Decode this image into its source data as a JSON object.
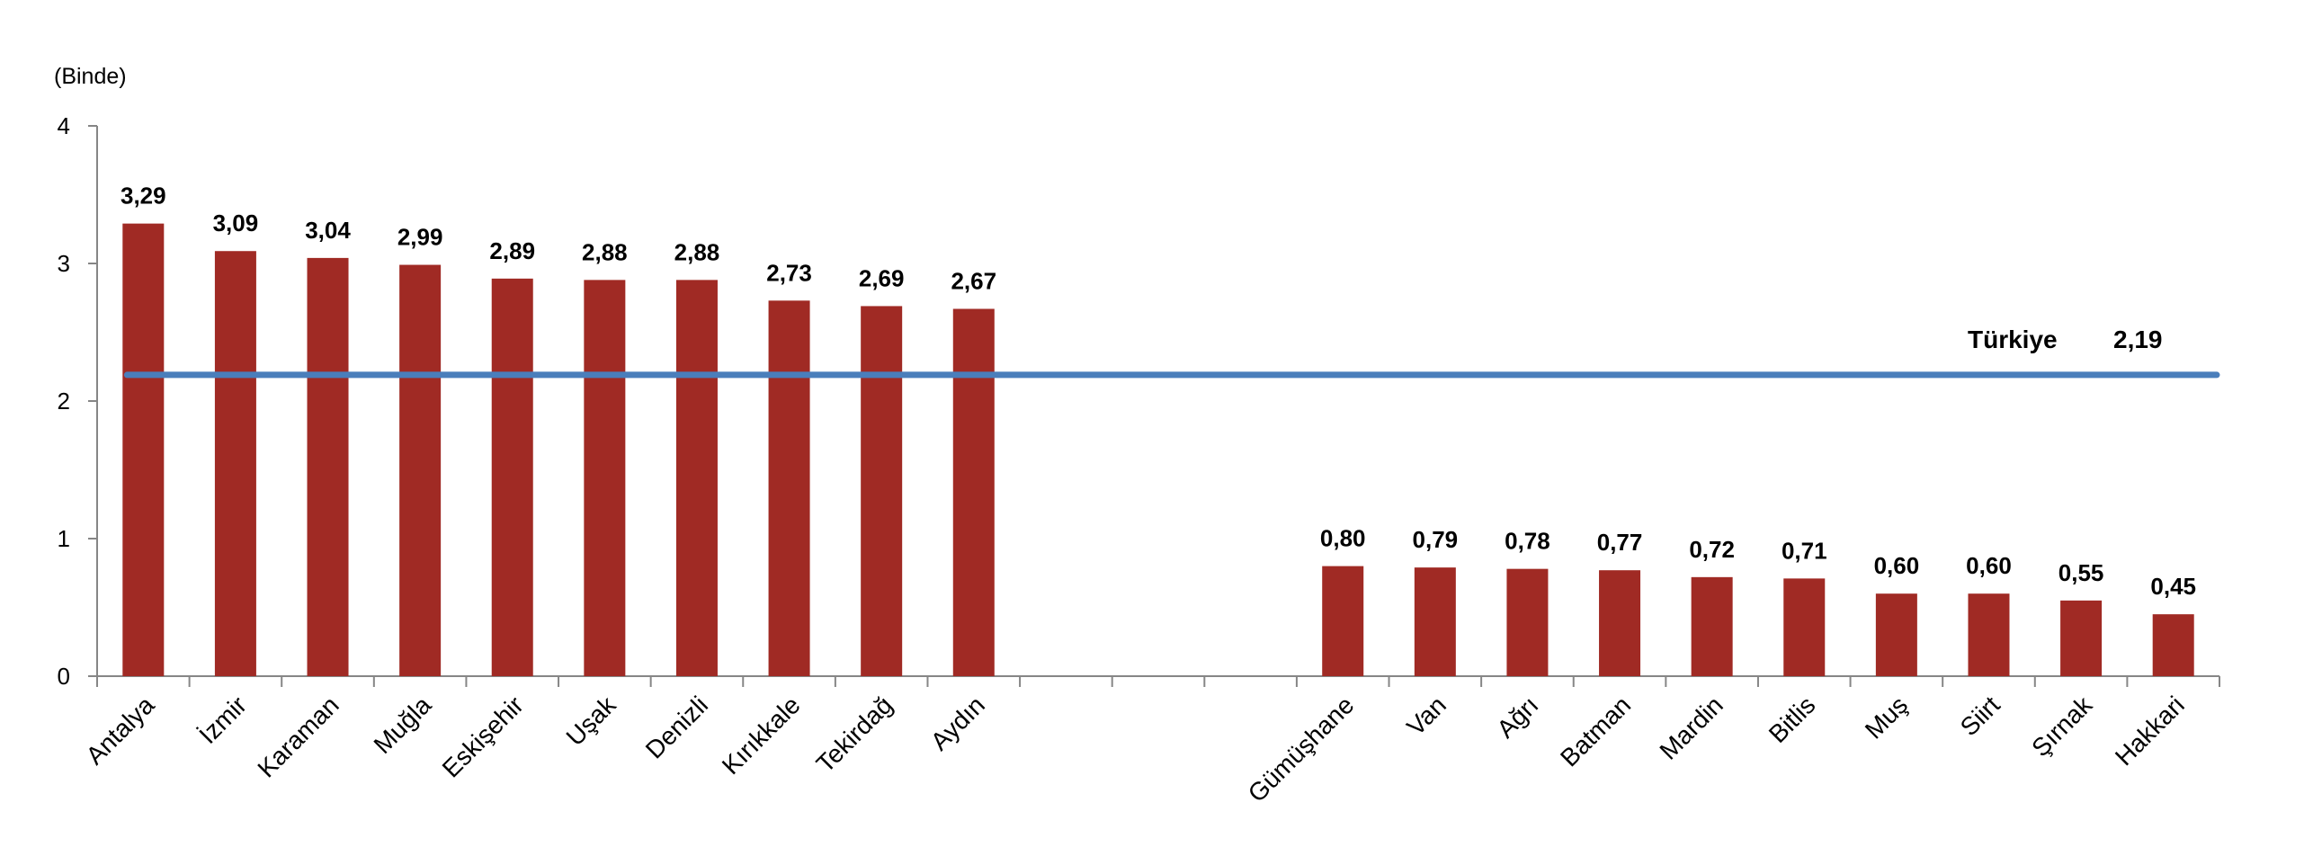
{
  "chart_data": {
    "type": "bar",
    "unit_label": "(Binde)",
    "categories": [
      "Antalya",
      "İzmir",
      "Karaman",
      "Muğla",
      "Eskişehir",
      "Uşak",
      "Denizli",
      "Kırıkkale",
      "Tekirdağ",
      "Aydın",
      "",
      "",
      "",
      "Gümüşhane",
      "Van",
      "Ağrı",
      "Batman",
      "Mardin",
      "Bitlis",
      "Muş",
      "Siirt",
      "Şırnak",
      "Hakkari"
    ],
    "values": [
      3.29,
      3.09,
      3.04,
      2.99,
      2.89,
      2.88,
      2.88,
      2.73,
      2.69,
      2.67,
      null,
      null,
      null,
      0.8,
      0.79,
      0.78,
      0.77,
      0.72,
      0.71,
      0.6,
      0.6,
      0.55,
      0.45
    ],
    "data_labels": [
      "3,29",
      "3,09",
      "3,04",
      "2,99",
      "2,89",
      "2,88",
      "2,88",
      "2,73",
      "2,69",
      "2,67",
      "",
      "",
      "",
      "0,80",
      "0,79",
      "0,78",
      "0,77",
      "0,72",
      "0,71",
      "0,60",
      "0,60",
      "0,55",
      "0,45"
    ],
    "ylim": [
      0,
      4
    ],
    "yticks": [
      "0",
      "1",
      "2",
      "3",
      "4"
    ],
    "grid": false,
    "reference_line": {
      "label": "Türkiye",
      "value": 2.19,
      "value_label": "2,19",
      "color": "#4a7ebb"
    },
    "colors": {
      "bar": "#a02a24"
    }
  }
}
